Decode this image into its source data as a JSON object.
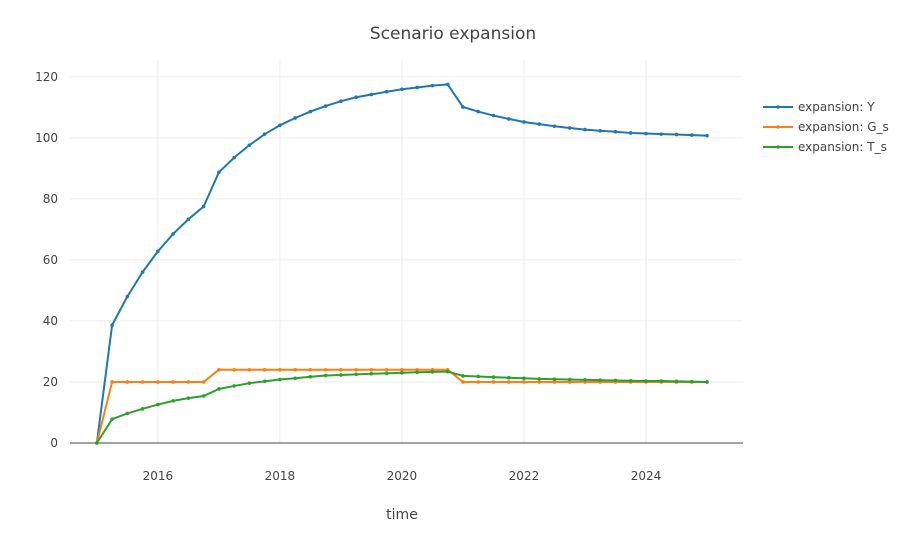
{
  "chart_data": {
    "type": "line",
    "title": "Scenario expansion",
    "xlabel": "time",
    "ylabel": "",
    "xlim": [
      2014.56,
      2025.59
    ],
    "ylim": [
      0,
      125.5
    ],
    "xticks": [
      2016,
      2018,
      2020,
      2022,
      2024
    ],
    "yticks": [
      0,
      20,
      40,
      60,
      80,
      100,
      120
    ],
    "grid": true,
    "legend_position": "right",
    "x_start": 2015,
    "x_step": 0.25,
    "series": [
      {
        "name": "expansion: Y",
        "color": "#1f77b4",
        "values": [
          0,
          38.6,
          48.0,
          56.0,
          62.8,
          68.5,
          73.3,
          77.5,
          88.7,
          93.5,
          97.6,
          101.2,
          104.1,
          106.5,
          108.6,
          110.4,
          112.0,
          113.3,
          114.2,
          115.1,
          115.9,
          116.5,
          117.1,
          117.5,
          110.1,
          108.6,
          107.3,
          106.2,
          105.2,
          104.5,
          103.8,
          103.2,
          102.7,
          102.3,
          102.0,
          101.6,
          101.4,
          101.2,
          101.1,
          100.9,
          100.7
        ]
      },
      {
        "name": "expansion: G_s",
        "color": "#ff7f0e",
        "values": [
          0,
          20,
          20,
          20,
          20,
          20,
          20,
          20,
          24,
          24,
          24,
          24,
          24,
          24,
          24,
          24,
          24,
          24,
          24,
          24,
          24,
          24,
          24,
          24,
          20,
          20,
          20,
          20,
          20,
          20,
          20,
          20,
          20,
          20,
          20,
          20,
          20,
          20,
          20,
          20,
          20
        ]
      },
      {
        "name": "expansion: T_s",
        "color": "#2ca02c",
        "values": [
          0,
          7.8,
          9.7,
          11.2,
          12.6,
          13.8,
          14.7,
          15.4,
          17.7,
          18.7,
          19.6,
          20.2,
          20.8,
          21.2,
          21.7,
          22.1,
          22.3,
          22.5,
          22.7,
          22.8,
          23.0,
          23.2,
          23.3,
          23.4,
          22.0,
          21.8,
          21.6,
          21.4,
          21.2,
          21.0,
          20.9,
          20.8,
          20.7,
          20.6,
          20.5,
          20.4,
          20.3,
          20.3,
          20.2,
          20.1,
          20.0
        ]
      }
    ]
  }
}
